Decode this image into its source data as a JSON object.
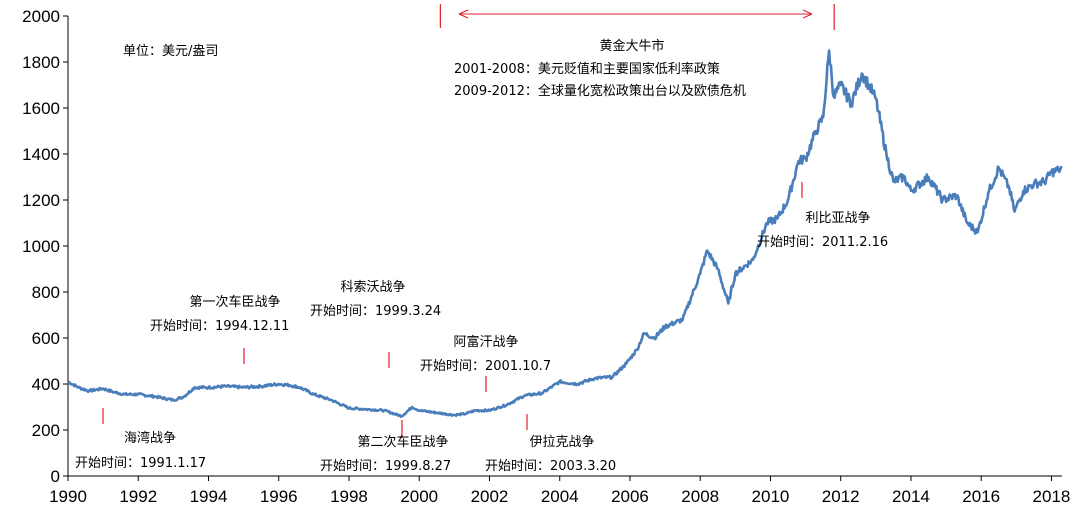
{
  "chart_data": {
    "type": "line",
    "unit_note": "单位：美元/盎司",
    "xlim": [
      1990,
      2018.3
    ],
    "ylim": [
      0,
      2000
    ],
    "x_ticks": [
      "1990",
      "1992",
      "1994",
      "1996",
      "1998",
      "2000",
      "2002",
      "2004",
      "2006",
      "2008",
      "2010",
      "2012",
      "2014",
      "2016",
      "2018"
    ],
    "y_ticks": [
      "0",
      "200",
      "400",
      "600",
      "800",
      "1000",
      "1200",
      "1400",
      "1600",
      "1800",
      "2000"
    ],
    "colors": {
      "series": "#4A7EBB",
      "marker": "#E0202A",
      "axis": "#000000"
    },
    "series": [
      {
        "x": [
          1990.0,
          1990.3,
          1990.6,
          1991.0,
          1991.3,
          1991.6,
          1992.0,
          1992.5,
          1993.0,
          1993.3,
          1993.6,
          1994.0,
          1994.5,
          1995.0,
          1995.5,
          1996.0,
          1996.3,
          1996.6,
          1997.0,
          1997.5,
          1998.0,
          1998.5,
          1999.0,
          1999.5,
          1999.8,
          2000.0,
          2000.5,
          2001.0,
          2001.3,
          2001.6,
          2002.0,
          2002.5,
          2003.0,
          2003.5,
          2004.0,
          2004.5,
          2005.0,
          2005.5,
          2005.9,
          2006.2,
          2006.4,
          2006.7,
          2007.0,
          2007.5,
          2008.0,
          2008.2,
          2008.5,
          2008.8,
          2009.0,
          2009.5,
          2009.9,
          2010.2,
          2010.5,
          2010.8,
          2011.0,
          2011.3,
          2011.5,
          2011.67,
          2011.8,
          2012.0,
          2012.3,
          2012.6,
          2012.8,
          2013.0,
          2013.3,
          2013.5,
          2013.8,
          2014.0,
          2014.5,
          2014.9,
          2015.3,
          2015.6,
          2015.9,
          2016.2,
          2016.5,
          2016.8,
          2016.95,
          2017.2,
          2017.5,
          2017.8,
          2018.0,
          2018.2,
          2018.3
        ],
        "y": [
          410,
          385,
          370,
          380,
          365,
          355,
          355,
          345,
          330,
          345,
          385,
          385,
          390,
          385,
          390,
          400,
          395,
          385,
          355,
          330,
          295,
          290,
          285,
          260,
          300,
          285,
          275,
          265,
          270,
          285,
          285,
          310,
          350,
          360,
          410,
          400,
          425,
          430,
          490,
          550,
          620,
          600,
          650,
          680,
          880,
          980,
          900,
          750,
          880,
          940,
          1100,
          1120,
          1200,
          1370,
          1380,
          1500,
          1560,
          1850,
          1650,
          1700,
          1620,
          1750,
          1700,
          1640,
          1400,
          1280,
          1300,
          1240,
          1300,
          1200,
          1220,
          1100,
          1060,
          1230,
          1340,
          1250,
          1150,
          1240,
          1270,
          1280,
          1320,
          1330,
          1340
        ]
      }
    ],
    "annotations": [
      {
        "title": "海湾战争",
        "sub": "开始时间：1991.1.17",
        "x": 1991.05
      },
      {
        "title": "第一次车臣战争",
        "sub": "开始时间：1994.12.11",
        "x": 1994.95
      },
      {
        "title": "科索沃战争",
        "sub": "开始时间：1999.3.24",
        "x": 1999.2
      },
      {
        "title": "第二次车臣战争",
        "sub": "开始时间：1999.8.27",
        "x": 1999.65
      },
      {
        "title": "阿富汗战争",
        "sub": "开始时间：2001.10.7",
        "x": 2001.8
      },
      {
        "title": "伊拉克战争",
        "sub": "开始时间：2003.3.20",
        "x": 2003.2
      },
      {
        "title": "利比亚战争",
        "sub": "开始时间：2011.2.16",
        "x": 2011.1
      }
    ],
    "bull_market": {
      "title": "黄金大牛市",
      "line1": "2001-2008：美元贬值和主要国家低利率政策",
      "line2": "2009-2012：全球量化宽松政策出台以及欧债危机",
      "x_start": 2001.0,
      "x_end": 2011.7
    }
  }
}
